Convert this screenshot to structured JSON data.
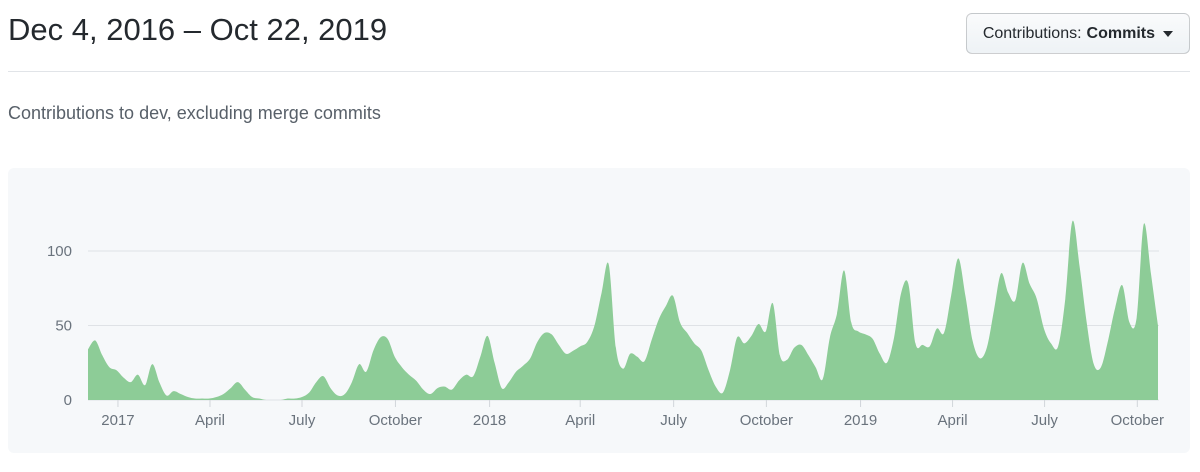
{
  "header": {
    "title": "Dec 4, 2016 – Oct 22, 2019",
    "filter_button": {
      "label_prefix": "Contributions:",
      "label_value": "Commits"
    }
  },
  "subtitle": "Contributions to dev, excluding merge commits",
  "chart_data": {
    "type": "area",
    "title": "Contributions to dev, excluding merge commits",
    "x_range_labels": [
      "Dec 4, 2016",
      "Oct 22, 2019"
    ],
    "unit": "commits per week",
    "grid": true,
    "ylim": [
      0,
      125
    ],
    "yticks": [
      0,
      50,
      100
    ],
    "xticks": [
      {
        "week": 4.2,
        "label": "2017"
      },
      {
        "week": 17.1,
        "label": "April"
      },
      {
        "week": 30.0,
        "label": "July"
      },
      {
        "week": 43.1,
        "label": "October"
      },
      {
        "week": 56.3,
        "label": "2018"
      },
      {
        "week": 69.0,
        "label": "April"
      },
      {
        "week": 82.1,
        "label": "July"
      },
      {
        "week": 95.1,
        "label": "October"
      },
      {
        "week": 108.3,
        "label": "2019"
      },
      {
        "week": 121.2,
        "label": "April"
      },
      {
        "week": 134.1,
        "label": "July"
      },
      {
        "week": 147.1,
        "label": "October"
      }
    ],
    "values": [
      34,
      40,
      30,
      22,
      20,
      15,
      12,
      17,
      10,
      24,
      12,
      3,
      6,
      4,
      2,
      1,
      1,
      1,
      2,
      4,
      8,
      12,
      7,
      2,
      1,
      0,
      0,
      0,
      1,
      1,
      2,
      5,
      12,
      16,
      8,
      3,
      4,
      12,
      24,
      19,
      33,
      42,
      41,
      29,
      22,
      17,
      13,
      7,
      4,
      8,
      9,
      7,
      13,
      17,
      16,
      29,
      43,
      25,
      8,
      12,
      19,
      23,
      28,
      39,
      45,
      44,
      37,
      31,
      33,
      36,
      39,
      50,
      72,
      91,
      35,
      21,
      31,
      29,
      26,
      40,
      54,
      63,
      70,
      52,
      45,
      38,
      33,
      20,
      9,
      5,
      20,
      42,
      38,
      43,
      51,
      46,
      65,
      30,
      27,
      35,
      37,
      30,
      22,
      14,
      42,
      58,
      87,
      52,
      46,
      44,
      41,
      31,
      25,
      42,
      72,
      78,
      38,
      37,
      36,
      48,
      45,
      70,
      95,
      70,
      40,
      28,
      35,
      60,
      85,
      72,
      67,
      92,
      78,
      68,
      48,
      38,
      36,
      68,
      120,
      90,
      52,
      24,
      22,
      40,
      62,
      77,
      52,
      55,
      118,
      85,
      50
    ],
    "colors": {
      "area": "#8dcc97",
      "grid": "#dfe2e6",
      "tick": "#d1d5da",
      "axis_text": "#6a737d",
      "panel_bg": "#f6f8fa"
    }
  }
}
